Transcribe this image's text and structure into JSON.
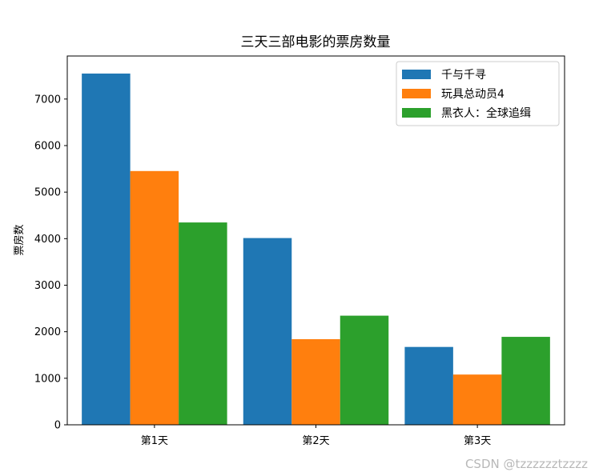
{
  "chart_data": {
    "type": "bar",
    "title": "三天三部电影的票房数量",
    "xlabel": "",
    "ylabel": "票房数",
    "categories": [
      "第1天",
      "第2天",
      "第3天"
    ],
    "series": [
      {
        "name": "千与千寻",
        "color": "#1f77b4",
        "values": [
          7548,
          4013,
          1673
        ]
      },
      {
        "name": "玩具总动员4",
        "color": "#ff7f0e",
        "values": [
          5453,
          1840,
          1080
        ]
      },
      {
        "name": "黑衣人：全球追缉",
        "color": "#2ca02c",
        "values": [
          4348,
          2345,
          1890
        ]
      }
    ],
    "ylim": [
      0,
      7925
    ],
    "yticks": [
      0,
      1000,
      2000,
      3000,
      4000,
      5000,
      6000,
      7000
    ],
    "grid": false,
    "legend": "top-right"
  },
  "watermark": "CSDN @tzzzzzztzzzz"
}
